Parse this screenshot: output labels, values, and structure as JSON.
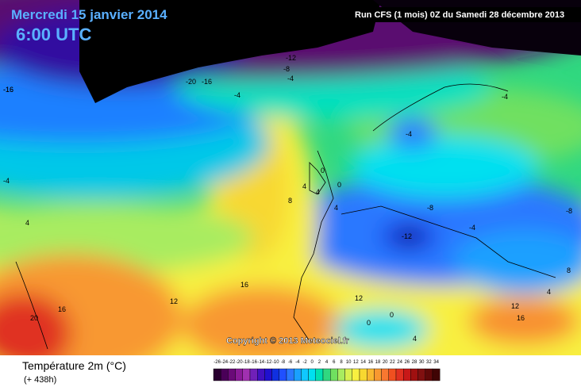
{
  "header": {
    "date": "Mercredi 15 janvier 2014",
    "time": "6:00 UTC",
    "run": "Run CFS (1 mois) 0Z du Samedi 28 décembre 2013"
  },
  "copyright": "Copyright © 2013 Meteociel.fr",
  "legend": {
    "title": "Température 2m (°C)",
    "lead": "(+ 438h)",
    "ticks": [
      -26,
      -24,
      -22,
      -20,
      -18,
      -16,
      -14,
      -12,
      -10,
      -8,
      -6,
      -4,
      -2,
      0,
      2,
      4,
      6,
      8,
      10,
      12,
      14,
      16,
      18,
      20,
      22,
      24,
      26,
      28,
      30,
      32,
      34
    ],
    "colors": [
      "#2a0030",
      "#4a0058",
      "#6a0a78",
      "#8a1a98",
      "#a030b0",
      "#7020b8",
      "#4010c0",
      "#2010d0",
      "#1030e0",
      "#2050ff",
      "#2a78ff",
      "#1aa0ff",
      "#10c8ff",
      "#00e0f0",
      "#00e0b0",
      "#30d880",
      "#70e060",
      "#a8ec60",
      "#d8f050",
      "#f8f040",
      "#f8d830",
      "#f8b830",
      "#f89830",
      "#f87830",
      "#f05020",
      "#e03020",
      "#c81818",
      "#a01010",
      "#801010",
      "#600808",
      "#400404"
    ]
  },
  "map_labels": [
    -12,
    -8,
    -4,
    -20,
    -16,
    -16,
    -4,
    -4,
    -4,
    0,
    4,
    0,
    4,
    8,
    4,
    -8,
    -8,
    -4,
    -12,
    12,
    16,
    16,
    20,
    12,
    0,
    0,
    4,
    12,
    16,
    8,
    4,
    4,
    -4,
    -16
  ]
}
